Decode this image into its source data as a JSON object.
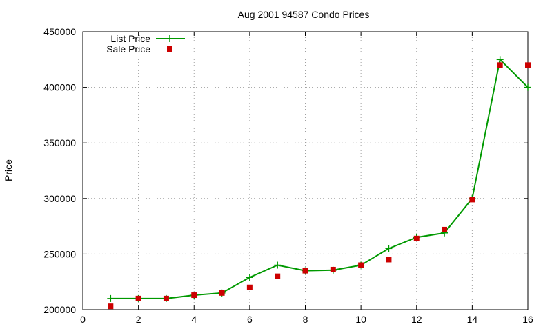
{
  "chart_data": {
    "type": "line",
    "title": "Aug 2001 94587 Condo Prices",
    "xlabel": "",
    "ylabel": "Price",
    "xlim": [
      0,
      16
    ],
    "ylim": [
      200000,
      450000
    ],
    "xticks": [
      0,
      2,
      4,
      6,
      8,
      10,
      12,
      14,
      16
    ],
    "yticks": [
      200000,
      250000,
      300000,
      350000,
      400000,
      450000
    ],
    "grid": true,
    "legend_position": "top-left",
    "series": [
      {
        "name": "List Price",
        "style": "lines+plus",
        "color": "#009900",
        "x": [
          1,
          2,
          3,
          4,
          5,
          6,
          7,
          8,
          9,
          10,
          11,
          12,
          13,
          14,
          15,
          16
        ],
        "y": [
          210000,
          210000,
          210000,
          213000,
          215000,
          229000,
          240000,
          235000,
          235500,
          240000,
          255000,
          265000,
          269000,
          300000,
          425000,
          400000
        ]
      },
      {
        "name": "Sale Price",
        "style": "squares",
        "color": "#cc0000",
        "x": [
          1,
          2,
          3,
          4,
          5,
          6,
          7,
          8,
          9,
          10,
          11,
          12,
          13,
          14,
          15,
          16
        ],
        "y": [
          203000,
          210000,
          210000,
          213000,
          215000,
          220000,
          230000,
          235000,
          236000,
          240000,
          245000,
          264000,
          272000,
          299000,
          420000,
          420000
        ]
      }
    ]
  }
}
